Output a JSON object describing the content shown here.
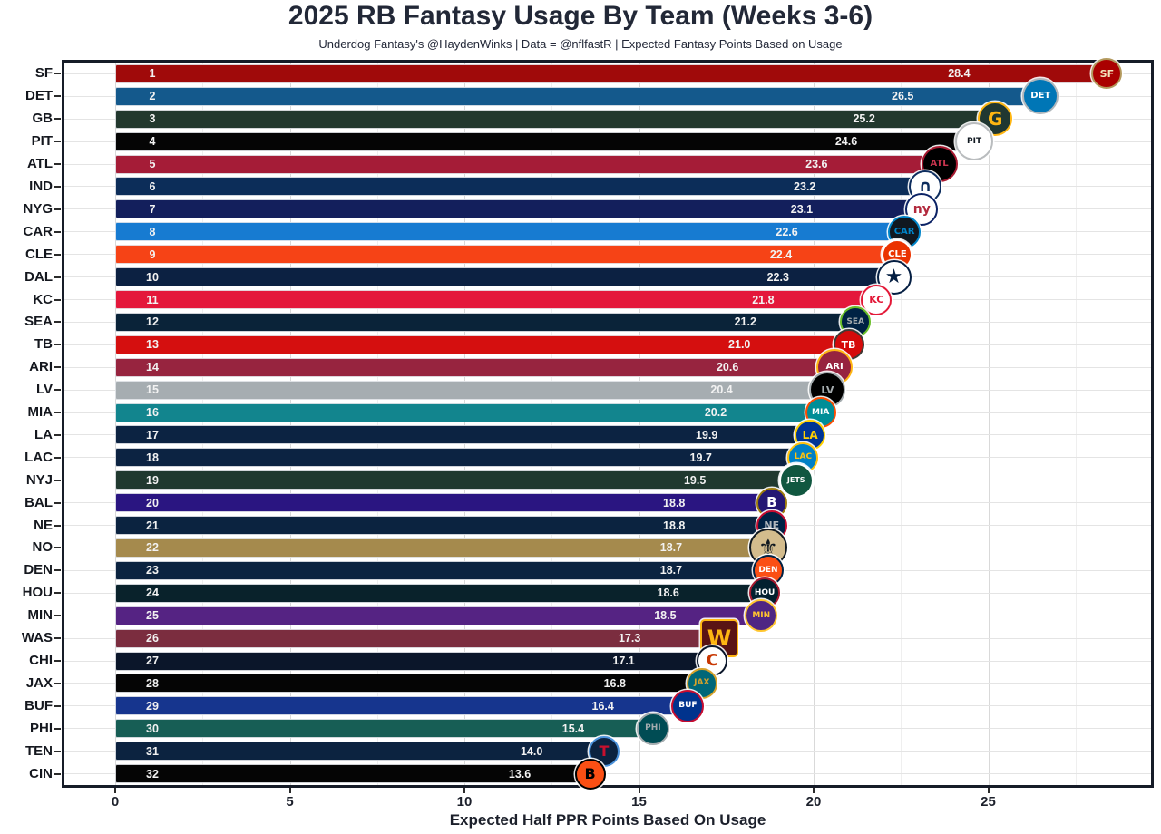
{
  "title": "2025 RB Fantasy Usage By Team (Weeks 3-6)",
  "subtitle": "Underdog Fantasy's @HaydenWinks | Data = @nflfastR | Expected Fantasy Points Based on Usage",
  "chart_data": {
    "type": "bar",
    "orientation": "horizontal",
    "title": "2025 RB Fantasy Usage By Team (Weeks 3-6)",
    "xlabel": "Expected Half PPR Points Based On Usage",
    "ylabel": "",
    "xlim": [
      0,
      29.5
    ],
    "x_ticks": [
      0,
      5,
      10,
      15,
      20,
      25
    ],
    "grid": "on",
    "legend": "none",
    "teams": [
      {
        "rank": 1,
        "abbr": "SF",
        "value": 28.4,
        "label": "28.4",
        "bar_color": "#A00A0A",
        "logo": {
          "shape": "circle",
          "bg": "#AA0000",
          "ring": "#B3995D",
          "fg": "#F3E3BC",
          "glyph": "SF",
          "size": 34,
          "glyph_size": 11
        }
      },
      {
        "rank": 2,
        "abbr": "DET",
        "value": 26.5,
        "label": "26.5",
        "bar_color": "#14598C",
        "logo": {
          "shape": "circle",
          "bg": "#0076B6",
          "ring": "#B0B7BC",
          "fg": "#FFFFFF",
          "glyph": "DET",
          "size": 40,
          "glyph_size": 10
        }
      },
      {
        "rank": 3,
        "abbr": "GB",
        "value": 25.2,
        "label": "25.2",
        "bar_color": "#22382E",
        "logo": {
          "shape": "circle",
          "bg": "#203731",
          "ring": "#FFB612",
          "fg": "#FFB612",
          "glyph": "G",
          "size": 38,
          "glyph_size": 20
        }
      },
      {
        "rank": 4,
        "abbr": "PIT",
        "value": 24.6,
        "label": "24.6",
        "bar_color": "#050505",
        "logo": {
          "shape": "circle",
          "bg": "#FFFFFF",
          "ring": "#B9BCBE",
          "fg": "#101820",
          "glyph": "PIT",
          "size": 42,
          "glyph_size": 9
        }
      },
      {
        "rank": 5,
        "abbr": "ATL",
        "value": 23.6,
        "label": "23.6",
        "bar_color": "#A51C37",
        "logo": {
          "shape": "circle",
          "bg": "#000000",
          "ring": "#A71930",
          "fg": "#C8344E",
          "glyph": "ATL",
          "size": 40,
          "glyph_size": 10
        }
      },
      {
        "rank": 6,
        "abbr": "IND",
        "value": 23.2,
        "label": "23.2",
        "bar_color": "#0C2D59",
        "logo": {
          "shape": "circle",
          "bg": "#FFFFFF",
          "ring": "#0D2D5E",
          "fg": "#0D2D5E",
          "glyph": "∩",
          "size": 36,
          "glyph_size": 18
        }
      },
      {
        "rank": 7,
        "abbr": "NYG",
        "value": 23.1,
        "label": "23.1",
        "bar_color": "#131F5C",
        "logo": {
          "shape": "circle",
          "bg": "#FFFFFF",
          "ring": "#0B2265",
          "fg": "#B2293D",
          "glyph": "ny",
          "size": 36,
          "glyph_size": 14
        }
      },
      {
        "rank": 8,
        "abbr": "CAR",
        "value": 22.6,
        "label": "22.6",
        "bar_color": "#177BD1",
        "logo": {
          "shape": "circle",
          "bg": "#101820",
          "ring": "#0085CA",
          "fg": "#0085CA",
          "glyph": "CAR",
          "size": 36,
          "glyph_size": 10
        }
      },
      {
        "rank": 9,
        "abbr": "CLE",
        "value": 22.4,
        "label": "22.4",
        "bar_color": "#F64316",
        "logo": {
          "shape": "circle",
          "bg": "#EB3300",
          "ring": "#FFFFFF",
          "fg": "#FFFFFF",
          "glyph": "CLE",
          "size": 34,
          "glyph_size": 10
        }
      },
      {
        "rank": 10,
        "abbr": "DAL",
        "value": 22.3,
        "label": "22.3",
        "bar_color": "#0C2142",
        "logo": {
          "shape": "circle",
          "bg": "#FFFFFF",
          "ring": "#041E42",
          "fg": "#041E42",
          "glyph": "★",
          "size": 38,
          "glyph_size": 22
        }
      },
      {
        "rank": 11,
        "abbr": "KC",
        "value": 21.8,
        "label": "21.8",
        "bar_color": "#E4173B",
        "logo": {
          "shape": "circle",
          "bg": "#FFFFFF",
          "ring": "#E31837",
          "fg": "#E31837",
          "glyph": "KC",
          "size": 34,
          "glyph_size": 11
        }
      },
      {
        "rank": 12,
        "abbr": "SEA",
        "value": 21.2,
        "label": "21.2",
        "bar_color": "#0A2339",
        "logo": {
          "shape": "circle",
          "bg": "#002244",
          "ring": "#69BE28",
          "fg": "#A5ACAF",
          "glyph": "SEA",
          "size": 34,
          "glyph_size": 9
        }
      },
      {
        "rank": 13,
        "abbr": "TB",
        "value": 21.0,
        "label": "21.0",
        "bar_color": "#D50F0F",
        "logo": {
          "shape": "circle",
          "bg": "#D50A0A",
          "ring": "#3E3A35",
          "fg": "#FFFFFF",
          "glyph": "TB",
          "size": 34,
          "glyph_size": 11
        }
      },
      {
        "rank": 14,
        "abbr": "ARI",
        "value": 20.6,
        "label": "20.6",
        "bar_color": "#97243F",
        "logo": {
          "shape": "circle",
          "bg": "#97233F",
          "ring": "#FFB612",
          "fg": "#FFFFFF",
          "glyph": "ARI",
          "size": 40,
          "glyph_size": 10
        }
      },
      {
        "rank": 15,
        "abbr": "LV",
        "value": 20.4,
        "label": "20.4",
        "bar_color": "#A6ADB1",
        "logo": {
          "shape": "circle",
          "bg": "#000000",
          "ring": "#A5ACAF",
          "fg": "#A5ACAF",
          "glyph": "LV",
          "size": 40,
          "glyph_size": 11
        }
      },
      {
        "rank": 16,
        "abbr": "MIA",
        "value": 20.2,
        "label": "20.2",
        "bar_color": "#12858E",
        "logo": {
          "shape": "circle",
          "bg": "#008E97",
          "ring": "#FC4C02",
          "fg": "#FFFFFF",
          "glyph": "MIA",
          "size": 34,
          "glyph_size": 9
        }
      },
      {
        "rank": 17,
        "abbr": "LA",
        "value": 19.9,
        "label": "19.9",
        "bar_color": "#0C2342",
        "logo": {
          "shape": "circle",
          "bg": "#003594",
          "ring": "#FFD100",
          "fg": "#FFD100",
          "glyph": "LA",
          "size": 34,
          "glyph_size": 12
        }
      },
      {
        "rank": 18,
        "abbr": "LAC",
        "value": 19.7,
        "label": "19.7",
        "bar_color": "#0C2342",
        "logo": {
          "shape": "circle",
          "bg": "#0080C6",
          "ring": "#FFC20E",
          "fg": "#FFC20E",
          "glyph": "LAC",
          "size": 34,
          "glyph_size": 9
        }
      },
      {
        "rank": 19,
        "abbr": "NYJ",
        "value": 19.5,
        "label": "19.5",
        "bar_color": "#20392F",
        "logo": {
          "shape": "circle",
          "bg": "#115740",
          "ring": "#FFFFFF",
          "fg": "#FFFFFF",
          "glyph": "JETS",
          "size": 38,
          "glyph_size": 8
        }
      },
      {
        "rank": 20,
        "abbr": "BAL",
        "value": 18.8,
        "label": "18.8",
        "bar_color": "#2A1581",
        "logo": {
          "shape": "circle",
          "bg": "#241773",
          "ring": "#9E7C0C",
          "fg": "#FFFFFF",
          "glyph": "B",
          "size": 34,
          "glyph_size": 15
        }
      },
      {
        "rank": 21,
        "abbr": "NE",
        "value": 18.8,
        "label": "18.8",
        "bar_color": "#0B2340",
        "logo": {
          "shape": "circle",
          "bg": "#002244",
          "ring": "#C60C30",
          "fg": "#B0B7BC",
          "glyph": "NE",
          "size": 34,
          "glyph_size": 11
        }
      },
      {
        "rank": 22,
        "abbr": "NO",
        "value": 18.7,
        "label": "18.7",
        "bar_color": "#A58A4D",
        "logo": {
          "shape": "circle",
          "bg": "#D3BC8D",
          "ring": "#101820",
          "fg": "#101820",
          "glyph": "⚜",
          "size": 42,
          "glyph_size": 24
        }
      },
      {
        "rank": 23,
        "abbr": "DEN",
        "value": 18.7,
        "label": "18.7",
        "bar_color": "#0B2340",
        "logo": {
          "shape": "circle",
          "bg": "#FB4F14",
          "ring": "#002244",
          "fg": "#FFFFFF",
          "glyph": "DEN",
          "size": 34,
          "glyph_size": 9
        }
      },
      {
        "rank": 24,
        "abbr": "HOU",
        "value": 18.6,
        "label": "18.6",
        "bar_color": "#09222B",
        "logo": {
          "shape": "circle",
          "bg": "#03202F",
          "ring": "#A71930",
          "fg": "#FFFFFF",
          "glyph": "HOU",
          "size": 34,
          "glyph_size": 9
        }
      },
      {
        "rank": 25,
        "abbr": "MIN",
        "value": 18.5,
        "label": "18.5",
        "bar_color": "#552383",
        "logo": {
          "shape": "circle",
          "bg": "#4F2683",
          "ring": "#FFC62F",
          "fg": "#FFC62F",
          "glyph": "MIN",
          "size": 36,
          "glyph_size": 9
        }
      },
      {
        "rank": 26,
        "abbr": "WAS",
        "value": 17.3,
        "label": "17.3",
        "bar_color": "#7B2D3F",
        "logo": {
          "shape": "square",
          "bg": "#5A1414",
          "ring": "#FFB612",
          "fg": "#FFB612",
          "glyph": "W",
          "size": 42,
          "glyph_size": 24
        }
      },
      {
        "rank": 27,
        "abbr": "CHI",
        "value": 17.1,
        "label": "17.1",
        "bar_color": "#0B162A",
        "logo": {
          "shape": "circle",
          "bg": "#FFFFFF",
          "ring": "#0B162A",
          "fg": "#C83803",
          "glyph": "C",
          "size": 34,
          "glyph_size": 18
        }
      },
      {
        "rank": 28,
        "abbr": "JAX",
        "value": 16.8,
        "label": "16.8",
        "bar_color": "#050505",
        "logo": {
          "shape": "circle",
          "bg": "#006778",
          "ring": "#D7A22A",
          "fg": "#D7A22A",
          "glyph": "JAX",
          "size": 34,
          "glyph_size": 9
        }
      },
      {
        "rank": 29,
        "abbr": "BUF",
        "value": 16.4,
        "label": "16.4",
        "bar_color": "#16358E",
        "logo": {
          "shape": "circle",
          "bg": "#00338D",
          "ring": "#C60C30",
          "fg": "#FFFFFF",
          "glyph": "BUF",
          "size": 36,
          "glyph_size": 9
        }
      },
      {
        "rank": 30,
        "abbr": "PHI",
        "value": 15.4,
        "label": "15.4",
        "bar_color": "#175E55",
        "logo": {
          "shape": "circle",
          "bg": "#004C54",
          "ring": "#A5ACAF",
          "fg": "#A5ACAF",
          "glyph": "PHI",
          "size": 36,
          "glyph_size": 9
        }
      },
      {
        "rank": 31,
        "abbr": "TEN",
        "value": 14.0,
        "label": "14.0",
        "bar_color": "#0C2340",
        "logo": {
          "shape": "circle",
          "bg": "#0C2340",
          "ring": "#4B92DB",
          "fg": "#C8102E",
          "glyph": "T",
          "size": 34,
          "glyph_size": 16
        }
      },
      {
        "rank": 32,
        "abbr": "CIN",
        "value": 13.6,
        "label": "13.6",
        "bar_color": "#050505",
        "logo": {
          "shape": "circle",
          "bg": "#FB4F14",
          "ring": "#000000",
          "fg": "#000000",
          "glyph": "B",
          "size": 34,
          "glyph_size": 16
        }
      }
    ]
  }
}
